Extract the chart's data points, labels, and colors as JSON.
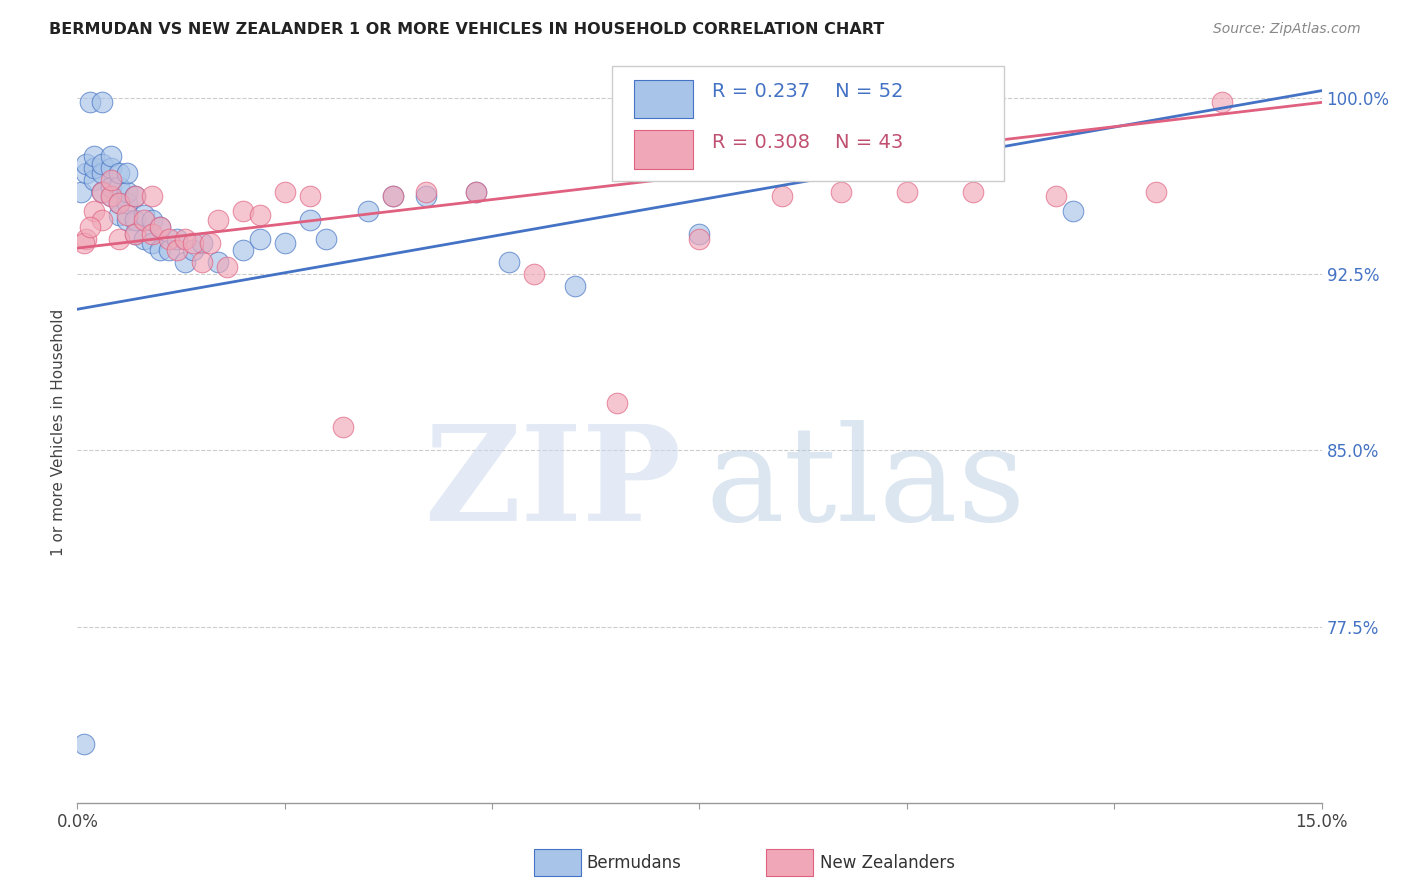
{
  "title": "BERMUDAN VS NEW ZEALANDER 1 OR MORE VEHICLES IN HOUSEHOLD CORRELATION CHART",
  "source": "Source: ZipAtlas.com",
  "ylabel": "1 or more Vehicles in Household",
  "xmin": 0.0,
  "xmax": 0.15,
  "ymin": 0.7,
  "ymax": 1.015,
  "yticks": [
    0.775,
    0.85,
    0.925,
    1.0
  ],
  "ytick_labels": [
    "77.5%",
    "85.0%",
    "92.5%",
    "100.0%"
  ],
  "xticks": [
    0.0,
    0.025,
    0.05,
    0.075,
    0.1,
    0.125,
    0.15
  ],
  "xtick_labels": [
    "0.0%",
    "",
    "",
    "",
    "",
    "",
    "15.0%"
  ],
  "legend_blue_label": "Bermudans",
  "legend_pink_label": "New Zealanders",
  "r_blue": 0.237,
  "n_blue": 52,
  "r_pink": 0.308,
  "n_pink": 43,
  "blue_color": "#a8c4e8",
  "pink_color": "#f0a8b8",
  "blue_line_color": "#4472c4",
  "pink_line_color": "#e06080",
  "blue_x": [
    0.0005,
    0.001,
    0.001,
    0.0015,
    0.002,
    0.002,
    0.002,
    0.003,
    0.003,
    0.003,
    0.003,
    0.004,
    0.004,
    0.004,
    0.004,
    0.005,
    0.005,
    0.005,
    0.005,
    0.006,
    0.006,
    0.006,
    0.006,
    0.007,
    0.007,
    0.007,
    0.008,
    0.008,
    0.009,
    0.009,
    0.01,
    0.01,
    0.011,
    0.012,
    0.013,
    0.014,
    0.015,
    0.017,
    0.02,
    0.022,
    0.025,
    0.028,
    0.03,
    0.035,
    0.038,
    0.042,
    0.048,
    0.052,
    0.06,
    0.075,
    0.12,
    0.0008
  ],
  "blue_y": [
    0.96,
    0.968,
    0.972,
    0.998,
    0.965,
    0.97,
    0.975,
    0.96,
    0.968,
    0.972,
    0.998,
    0.958,
    0.962,
    0.97,
    0.975,
    0.95,
    0.955,
    0.962,
    0.968,
    0.948,
    0.955,
    0.96,
    0.968,
    0.942,
    0.948,
    0.958,
    0.94,
    0.95,
    0.938,
    0.948,
    0.935,
    0.945,
    0.935,
    0.94,
    0.93,
    0.935,
    0.938,
    0.93,
    0.935,
    0.94,
    0.938,
    0.948,
    0.94,
    0.952,
    0.958,
    0.958,
    0.96,
    0.93,
    0.92,
    0.942,
    0.952,
    0.725
  ],
  "pink_x": [
    0.001,
    0.002,
    0.003,
    0.003,
    0.004,
    0.004,
    0.005,
    0.005,
    0.006,
    0.007,
    0.007,
    0.008,
    0.009,
    0.009,
    0.01,
    0.011,
    0.012,
    0.013,
    0.014,
    0.015,
    0.016,
    0.017,
    0.018,
    0.02,
    0.022,
    0.025,
    0.028,
    0.032,
    0.038,
    0.042,
    0.048,
    0.055,
    0.065,
    0.075,
    0.085,
    0.092,
    0.1,
    0.108,
    0.118,
    0.13,
    0.138,
    0.0008,
    0.0015
  ],
  "pink_y": [
    0.94,
    0.952,
    0.948,
    0.96,
    0.958,
    0.965,
    0.94,
    0.955,
    0.95,
    0.942,
    0.958,
    0.948,
    0.942,
    0.958,
    0.945,
    0.94,
    0.935,
    0.94,
    0.938,
    0.93,
    0.938,
    0.948,
    0.928,
    0.952,
    0.95,
    0.96,
    0.958,
    0.86,
    0.958,
    0.96,
    0.96,
    0.925,
    0.87,
    0.94,
    0.958,
    0.96,
    0.96,
    0.96,
    0.958,
    0.96,
    0.998,
    0.938,
    0.945
  ]
}
